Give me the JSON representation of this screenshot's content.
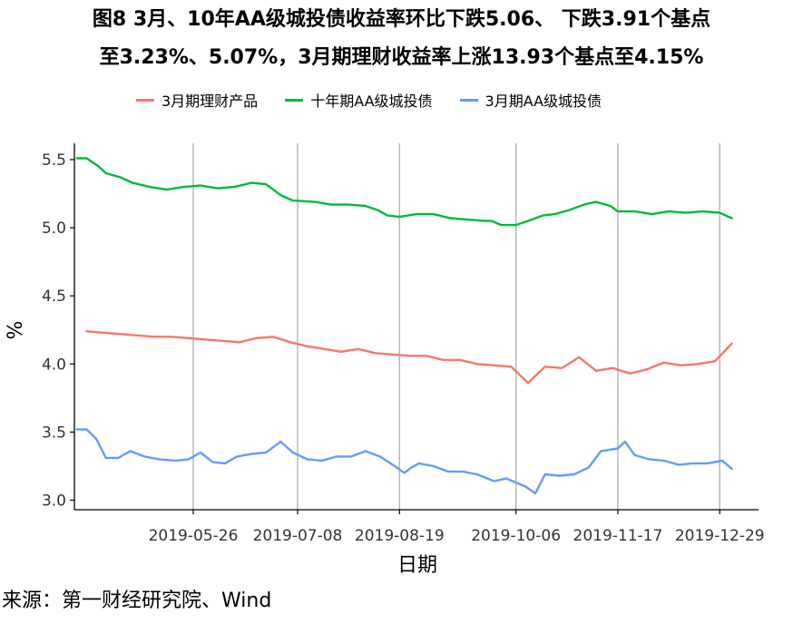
{
  "chart_data": {
    "type": "line",
    "title_line1": "图8 3月、10年AA级城投债收益率环比下跌5.06、 下跌3.91个基点",
    "title_line2": "至3.23%、5.07%，3月期理财收益率上涨13.93个基点至4.15%",
    "xlabel": "日期",
    "ylabel": "%",
    "ylim": [
      2.93,
      5.62
    ],
    "yticks": [
      3.0,
      3.5,
      4.0,
      4.5,
      5.0,
      5.5
    ],
    "xlim": [
      "2019-04-07",
      "2020-01-14"
    ],
    "xticks": [
      "2019-05-26",
      "2019-07-08",
      "2019-08-19",
      "2019-10-06",
      "2019-11-17",
      "2019-12-29"
    ],
    "grid": "vertical lines at x ticks",
    "legend_position": "top",
    "series": [
      {
        "name": "3月期理财产品",
        "color": "#F8766D",
        "points": [
          [
            "2019-04-12",
            4.24
          ],
          [
            "2019-04-19",
            4.23
          ],
          [
            "2019-04-26",
            4.22
          ],
          [
            "2019-05-03",
            4.21
          ],
          [
            "2019-05-10",
            4.2
          ],
          [
            "2019-05-17",
            4.2
          ],
          [
            "2019-05-24",
            4.19
          ],
          [
            "2019-05-31",
            4.18
          ],
          [
            "2019-06-07",
            4.17
          ],
          [
            "2019-06-14",
            4.16
          ],
          [
            "2019-06-21",
            4.19
          ],
          [
            "2019-06-28",
            4.2
          ],
          [
            "2019-07-05",
            4.16
          ],
          [
            "2019-07-12",
            4.13
          ],
          [
            "2019-07-19",
            4.11
          ],
          [
            "2019-07-26",
            4.09
          ],
          [
            "2019-08-02",
            4.11
          ],
          [
            "2019-08-09",
            4.08
          ],
          [
            "2019-08-16",
            4.07
          ],
          [
            "2019-08-23",
            4.06
          ],
          [
            "2019-08-30",
            4.06
          ],
          [
            "2019-09-06",
            4.03
          ],
          [
            "2019-09-13",
            4.03
          ],
          [
            "2019-09-20",
            4.0
          ],
          [
            "2019-09-27",
            3.99
          ],
          [
            "2019-10-04",
            3.98
          ],
          [
            "2019-10-11",
            3.86
          ],
          [
            "2019-10-18",
            3.98
          ],
          [
            "2019-10-25",
            3.97
          ],
          [
            "2019-11-01",
            4.05
          ],
          [
            "2019-11-08",
            3.95
          ],
          [
            "2019-11-15",
            3.97
          ],
          [
            "2019-11-22",
            3.93
          ],
          [
            "2019-11-29",
            3.96
          ],
          [
            "2019-12-06",
            4.01
          ],
          [
            "2019-12-13",
            3.99
          ],
          [
            "2019-12-20",
            4.0
          ],
          [
            "2019-12-27",
            4.02
          ],
          [
            "2020-01-03",
            4.15
          ]
        ]
      },
      {
        "name": "十年期AA级城投债",
        "color": "#00BA38",
        "points": [
          [
            "2019-04-08",
            5.51
          ],
          [
            "2019-04-12",
            5.51
          ],
          [
            "2019-04-17",
            5.45
          ],
          [
            "2019-04-20",
            5.4
          ],
          [
            "2019-04-26",
            5.37
          ],
          [
            "2019-05-01",
            5.33
          ],
          [
            "2019-05-08",
            5.3
          ],
          [
            "2019-05-15",
            5.28
          ],
          [
            "2019-05-22",
            5.3
          ],
          [
            "2019-05-29",
            5.31
          ],
          [
            "2019-06-05",
            5.29
          ],
          [
            "2019-06-12",
            5.3
          ],
          [
            "2019-06-19",
            5.33
          ],
          [
            "2019-06-25",
            5.32
          ],
          [
            "2019-07-01",
            5.24
          ],
          [
            "2019-07-06",
            5.2
          ],
          [
            "2019-07-15",
            5.19
          ],
          [
            "2019-07-22",
            5.17
          ],
          [
            "2019-07-29",
            5.17
          ],
          [
            "2019-08-05",
            5.16
          ],
          [
            "2019-08-10",
            5.13
          ],
          [
            "2019-08-14",
            5.09
          ],
          [
            "2019-08-19",
            5.08
          ],
          [
            "2019-08-26",
            5.1
          ],
          [
            "2019-09-02",
            5.1
          ],
          [
            "2019-09-09",
            5.07
          ],
          [
            "2019-09-16",
            5.06
          ],
          [
            "2019-09-23",
            5.05
          ],
          [
            "2019-09-26",
            5.05
          ],
          [
            "2019-09-30",
            5.02
          ],
          [
            "2019-10-06",
            5.02
          ],
          [
            "2019-10-11",
            5.05
          ],
          [
            "2019-10-17",
            5.09
          ],
          [
            "2019-10-22",
            5.1
          ],
          [
            "2019-10-28",
            5.13
          ],
          [
            "2019-11-03",
            5.17
          ],
          [
            "2019-11-08",
            5.19
          ],
          [
            "2019-11-14",
            5.16
          ],
          [
            "2019-11-17",
            5.12
          ],
          [
            "2019-11-24",
            5.12
          ],
          [
            "2019-12-01",
            5.1
          ],
          [
            "2019-12-08",
            5.12
          ],
          [
            "2019-12-15",
            5.11
          ],
          [
            "2019-12-22",
            5.12
          ],
          [
            "2019-12-29",
            5.11
          ],
          [
            "2020-01-03",
            5.07
          ]
        ]
      },
      {
        "name": "3月期AA级城投债",
        "color": "#619CFF",
        "points": [
          [
            "2019-04-08",
            3.52
          ],
          [
            "2019-04-12",
            3.52
          ],
          [
            "2019-04-16",
            3.45
          ],
          [
            "2019-04-20",
            3.31
          ],
          [
            "2019-04-25",
            3.31
          ],
          [
            "2019-04-30",
            3.36
          ],
          [
            "2019-05-06",
            3.32
          ],
          [
            "2019-05-12",
            3.3
          ],
          [
            "2019-05-19",
            3.29
          ],
          [
            "2019-05-24",
            3.3
          ],
          [
            "2019-05-29",
            3.35
          ],
          [
            "2019-06-03",
            3.28
          ],
          [
            "2019-06-08",
            3.27
          ],
          [
            "2019-06-13",
            3.32
          ],
          [
            "2019-06-19",
            3.34
          ],
          [
            "2019-06-25",
            3.35
          ],
          [
            "2019-07-01",
            3.43
          ],
          [
            "2019-07-06",
            3.35
          ],
          [
            "2019-07-12",
            3.3
          ],
          [
            "2019-07-18",
            3.29
          ],
          [
            "2019-07-24",
            3.32
          ],
          [
            "2019-07-30",
            3.32
          ],
          [
            "2019-08-05",
            3.36
          ],
          [
            "2019-08-11",
            3.32
          ],
          [
            "2019-08-17",
            3.25
          ],
          [
            "2019-08-21",
            3.2
          ],
          [
            "2019-08-24",
            3.24
          ],
          [
            "2019-08-27",
            3.27
          ],
          [
            "2019-09-02",
            3.25
          ],
          [
            "2019-09-08",
            3.21
          ],
          [
            "2019-09-14",
            3.21
          ],
          [
            "2019-09-20",
            3.19
          ],
          [
            "2019-09-27",
            3.14
          ],
          [
            "2019-10-02",
            3.16
          ],
          [
            "2019-10-06",
            3.13
          ],
          [
            "2019-10-10",
            3.1
          ],
          [
            "2019-10-14",
            3.05
          ],
          [
            "2019-10-18",
            3.19
          ],
          [
            "2019-10-24",
            3.18
          ],
          [
            "2019-10-30",
            3.19
          ],
          [
            "2019-11-05",
            3.24
          ],
          [
            "2019-11-10",
            3.36
          ],
          [
            "2019-11-17",
            3.38
          ],
          [
            "2019-11-20",
            3.43
          ],
          [
            "2019-11-24",
            3.33
          ],
          [
            "2019-11-30",
            3.3
          ],
          [
            "2019-12-06",
            3.29
          ],
          [
            "2019-12-12",
            3.26
          ],
          [
            "2019-12-18",
            3.27
          ],
          [
            "2019-12-24",
            3.27
          ],
          [
            "2019-12-30",
            3.29
          ],
          [
            "2020-01-03",
            3.23
          ]
        ]
      }
    ]
  },
  "source_text": "来源：第一财经研究院、Wind"
}
